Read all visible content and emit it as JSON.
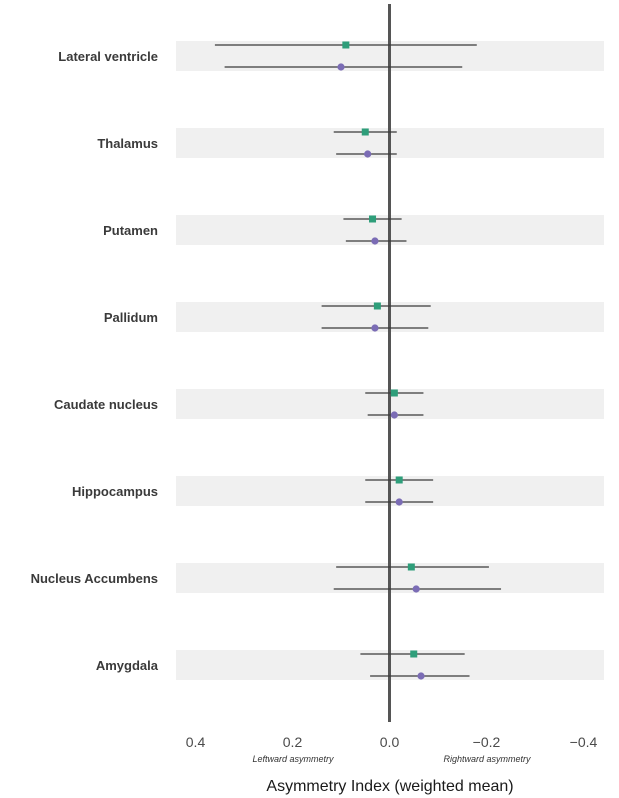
{
  "chart_data": {
    "type": "forest",
    "xlabel": "Asymmetry Index (weighted mean)",
    "x_ticks": [
      0.4,
      0.2,
      0.0,
      -0.2,
      -0.4
    ],
    "x_tick_labels": [
      "0.4",
      "0.2",
      "0.0",
      "−0.2",
      "−0.4"
    ],
    "xlim": [
      0.44,
      -0.44
    ],
    "x_reversed": true,
    "annotations": {
      "left": "Leftward asymmetry",
      "right": "Rightward asymmetry"
    },
    "categories": [
      "Lateral ventricle",
      "Thalamus",
      "Putamen",
      "Pallidum",
      "Caudate nucleus",
      "Hippocampus",
      "Nucleus Accumbens",
      "Amygdala"
    ],
    "series": [
      {
        "marker": "square",
        "color": "#2e9e7a",
        "estimates": [
          0.09,
          0.05,
          0.035,
          0.025,
          -0.01,
          -0.02,
          -0.045,
          -0.05
        ],
        "ci_low": [
          -0.18,
          -0.015,
          -0.025,
          -0.085,
          -0.07,
          -0.09,
          -0.205,
          -0.155
        ],
        "ci_high": [
          0.36,
          0.115,
          0.095,
          0.14,
          0.05,
          0.05,
          0.11,
          0.06
        ]
      },
      {
        "marker": "circle",
        "color": "#7b6cb5",
        "estimates": [
          0.1,
          0.045,
          0.03,
          0.03,
          -0.01,
          -0.02,
          -0.055,
          -0.065
        ],
        "ci_low": [
          -0.15,
          -0.015,
          -0.035,
          -0.08,
          -0.07,
          -0.09,
          -0.23,
          -0.165
        ],
        "ci_high": [
          0.34,
          0.11,
          0.09,
          0.14,
          0.045,
          0.05,
          0.115,
          0.04
        ]
      }
    ],
    "grid": false,
    "band_color": "#f0f0f0",
    "zero_line_color": "#555555",
    "whisker_color": "#3a3a3a"
  }
}
